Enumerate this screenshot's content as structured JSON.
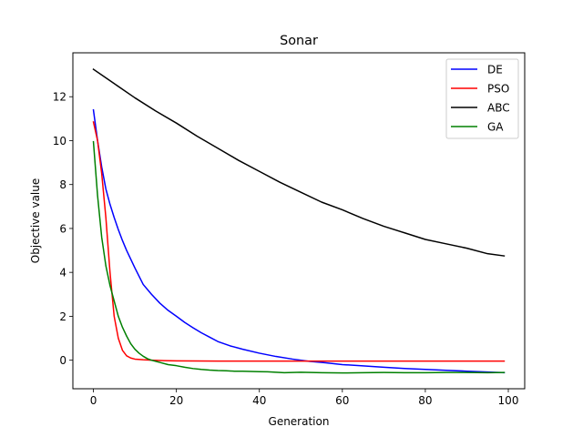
{
  "chart_data": {
    "type": "line",
    "title": "Sonar",
    "xlabel": "Generation",
    "ylabel": "Objective value",
    "xlim": [
      -4.95,
      103.95
    ],
    "ylim": [
      -1.3,
      14.0
    ],
    "xticks": [
      0,
      20,
      40,
      60,
      80,
      100
    ],
    "yticks": [
      0,
      2,
      4,
      6,
      8,
      10,
      12
    ],
    "grid": false,
    "legend_position": "top-right",
    "series": [
      {
        "name": "DE",
        "color": "#0000ff",
        "x": [
          0,
          1,
          2,
          3,
          4,
          5,
          6,
          7,
          8,
          9,
          10,
          12,
          14,
          16,
          18,
          20,
          22,
          24,
          26,
          28,
          30,
          33,
          36,
          40,
          44,
          48,
          52,
          56,
          60,
          65,
          70,
          75,
          80,
          85,
          90,
          95,
          99
        ],
        "y": [
          11.4,
          10.0,
          8.8,
          7.8,
          7.1,
          6.5,
          5.95,
          5.45,
          5.0,
          4.6,
          4.2,
          3.45,
          3.0,
          2.6,
          2.27,
          2.0,
          1.72,
          1.48,
          1.25,
          1.05,
          0.85,
          0.65,
          0.5,
          0.32,
          0.17,
          0.05,
          -0.05,
          -0.12,
          -0.2,
          -0.26,
          -0.32,
          -0.38,
          -0.42,
          -0.46,
          -0.5,
          -0.54,
          -0.57
        ]
      },
      {
        "name": "PSO",
        "color": "#ff0000",
        "x": [
          0,
          1,
          2,
          3,
          4,
          5,
          6,
          7,
          8,
          9,
          10,
          12,
          14,
          17,
          20,
          30,
          40,
          60,
          80,
          99
        ],
        "y": [
          10.85,
          10.0,
          8.5,
          6.5,
          4.0,
          2.0,
          1.0,
          0.45,
          0.2,
          0.1,
          0.05,
          0.02,
          0.0,
          -0.02,
          -0.03,
          -0.04,
          -0.04,
          -0.04,
          -0.04,
          -0.04
        ]
      },
      {
        "name": "ABC",
        "color": "#000000",
        "x": [
          0,
          5,
          10,
          15,
          20,
          25,
          30,
          35,
          40,
          45,
          50,
          55,
          60,
          65,
          70,
          75,
          80,
          85,
          90,
          95,
          99
        ],
        "y": [
          13.25,
          12.6,
          11.95,
          11.35,
          10.8,
          10.2,
          9.65,
          9.1,
          8.6,
          8.1,
          7.65,
          7.2,
          6.85,
          6.45,
          6.1,
          5.8,
          5.5,
          5.3,
          5.1,
          4.85,
          4.75
        ]
      },
      {
        "name": "GA",
        "color": "#008000",
        "x": [
          0,
          1,
          2,
          3,
          4,
          5,
          6,
          7,
          8,
          9,
          10,
          11,
          12,
          13,
          14,
          16,
          18,
          20,
          22,
          24,
          26,
          28,
          30,
          32,
          34,
          36,
          38,
          40,
          42,
          44,
          46,
          48,
          50,
          55,
          60,
          65,
          70,
          75,
          80,
          85,
          90,
          95,
          99
        ],
        "y": [
          9.95,
          7.5,
          5.6,
          4.3,
          3.4,
          2.7,
          2.0,
          1.5,
          1.1,
          0.75,
          0.5,
          0.32,
          0.18,
          0.07,
          0.0,
          -0.1,
          -0.2,
          -0.25,
          -0.32,
          -0.38,
          -0.42,
          -0.45,
          -0.47,
          -0.48,
          -0.5,
          -0.5,
          -0.51,
          -0.52,
          -0.53,
          -0.55,
          -0.57,
          -0.56,
          -0.55,
          -0.57,
          -0.58,
          -0.57,
          -0.56,
          -0.57,
          -0.57,
          -0.56,
          -0.56,
          -0.57,
          -0.56
        ]
      }
    ]
  }
}
